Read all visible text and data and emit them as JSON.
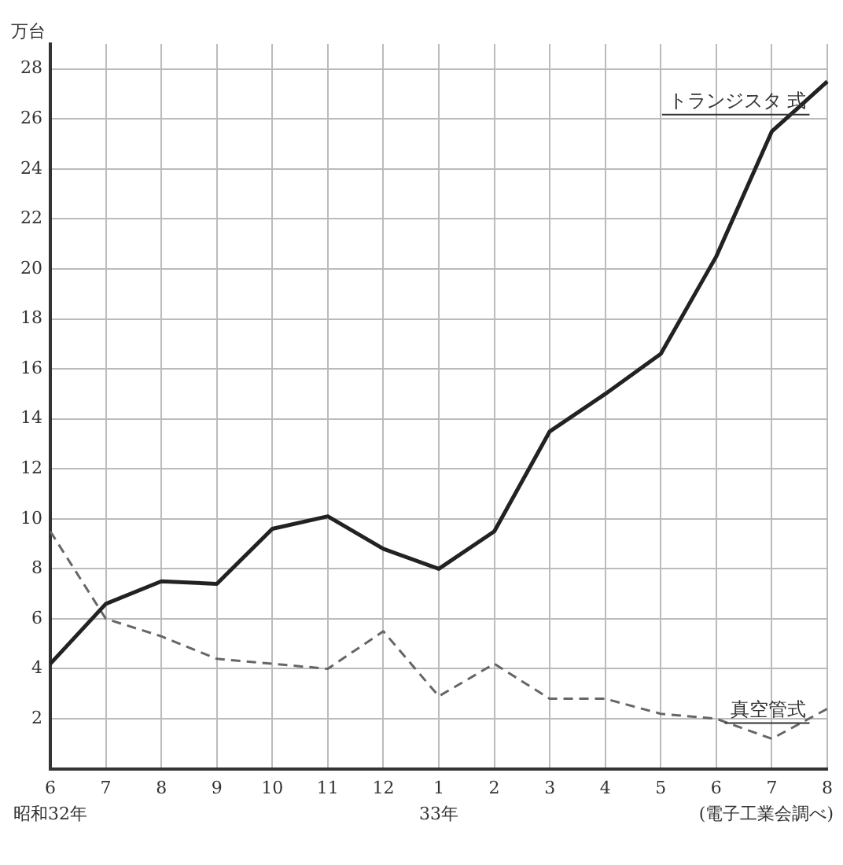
{
  "chart_data": {
    "type": "line",
    "ylabel": "万台",
    "categories": [
      "6",
      "7",
      "8",
      "9",
      "10",
      "11",
      "12",
      "1",
      "2",
      "3",
      "4",
      "5",
      "6",
      "7",
      "8"
    ],
    "series": [
      {
        "name": "トランジスタ 式",
        "color": "#222222",
        "line_style": "solid",
        "values": [
          4.2,
          6.6,
          7.5,
          7.4,
          9.6,
          10.1,
          8.8,
          8.0,
          9.5,
          13.5,
          15.0,
          16.6,
          20.5,
          25.5,
          27.5
        ]
      },
      {
        "name": "真空管式",
        "color": "#666666",
        "line_style": "dashed",
        "values": [
          9.5,
          6.0,
          5.3,
          4.4,
          4.2,
          4.0,
          5.5,
          2.9,
          4.2,
          2.8,
          2.8,
          2.2,
          2.0,
          1.2,
          2.4
        ]
      }
    ],
    "ylim": [
      0,
      29
    ],
    "yticks": [
      2,
      4,
      6,
      8,
      10,
      12,
      14,
      16,
      18,
      20,
      22,
      24,
      26,
      28
    ],
    "grid": true,
    "legend": false,
    "marker": "none",
    "annotations": [
      "昭和32年",
      "33年",
      "(電子工業会調べ)"
    ]
  }
}
